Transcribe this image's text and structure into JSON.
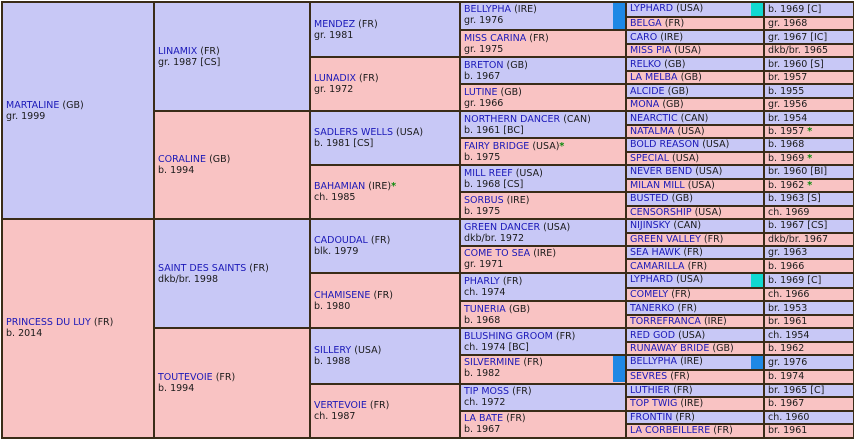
{
  "colors": {
    "male": "#c8c8f6",
    "female": "#f9c3c3",
    "border": "#3a2c18",
    "name": "#1a18b8",
    "star": "#0a8a0a",
    "flag_blue": "#1e88e5",
    "flag_cyan": "#10d9d0"
  },
  "g1": [
    {
      "name": "MARTALINE",
      "country": "(GB)",
      "info": "gr. 1999"
    },
    {
      "name": "PRINCESS DU LUY",
      "country": "(FR)",
      "info": "b. 2014"
    }
  ],
  "g2": [
    {
      "name": "LINAMIX",
      "country": "(FR)",
      "info": "gr. 1987 [CS]"
    },
    {
      "name": "CORALINE",
      "country": "(GB)",
      "info": "b. 1994"
    },
    {
      "name": "SAINT DES SAINTS",
      "country": "(FR)",
      "info": "dkb/br. 1998"
    },
    {
      "name": "TOUTEVOIE",
      "country": "(FR)",
      "info": "b. 1994"
    }
  ],
  "g3": [
    {
      "name": "MENDEZ",
      "country": "(FR)",
      "info": "gr. 1981"
    },
    {
      "name": "LUNADIX",
      "country": "(FR)",
      "info": "gr. 1972"
    },
    {
      "name": "SADLERS WELLS",
      "country": "(USA)",
      "info": "b. 1981 [CS]"
    },
    {
      "name": "BAHAMIAN",
      "country": "(IRE)",
      "info": "ch. 1985",
      "star": "*"
    },
    {
      "name": "CADOUDAL",
      "country": "(FR)",
      "info": "blk. 1979"
    },
    {
      "name": "CHAMISENE",
      "country": "(FR)",
      "info": "b. 1980"
    },
    {
      "name": "SILLERY",
      "country": "(USA)",
      "info": "b. 1988"
    },
    {
      "name": "VERTEVOIE",
      "country": "(FR)",
      "info": "ch. 1987"
    }
  ],
  "g4": [
    {
      "name": "BELLYPHA",
      "country": "(IRE)",
      "info": "gr. 1976"
    },
    {
      "name": "MISS CARINA",
      "country": "(FR)",
      "info": "gr. 1975"
    },
    {
      "name": "BRETON",
      "country": "(GB)",
      "info": "b. 1967"
    },
    {
      "name": "LUTINE",
      "country": "(GB)",
      "info": "gr. 1966"
    },
    {
      "name": "NORTHERN DANCER",
      "country": "(CAN)",
      "info": "b. 1961 [BC]"
    },
    {
      "name": "FAIRY BRIDGE",
      "country": "(USA)",
      "info": "b. 1975",
      "star": "*"
    },
    {
      "name": "MILL REEF",
      "country": "(USA)",
      "info": "b. 1968 [CS]"
    },
    {
      "name": "SORBUS",
      "country": "(IRE)",
      "info": "b. 1975"
    },
    {
      "name": "GREEN DANCER",
      "country": "(USA)",
      "info": "dkb/br. 1972"
    },
    {
      "name": "COME TO SEA",
      "country": "(IRE)",
      "info": "gr. 1971"
    },
    {
      "name": "PHARLY",
      "country": "(FR)",
      "info": "ch. 1974"
    },
    {
      "name": "TUNERIA",
      "country": "(GB)",
      "info": "b. 1968"
    },
    {
      "name": "BLUSHING GROOM",
      "country": "(FR)",
      "info": "ch. 1974 [BC]"
    },
    {
      "name": "SILVERMINE",
      "country": "(FR)",
      "info": "b. 1982"
    },
    {
      "name": "TIP MOSS",
      "country": "(FR)",
      "info": "ch. 1972"
    },
    {
      "name": "LA BATE",
      "country": "(FR)",
      "info": "b. 1967"
    }
  ],
  "g5": [
    {
      "name": "LYPHARD",
      "country": "(USA)",
      "info": "b. 1969 [C]"
    },
    {
      "name": "BELGA",
      "country": "(FR)",
      "info": "gr. 1968"
    },
    {
      "name": "CARO",
      "country": "(IRE)",
      "info": "gr. 1967 [IC]"
    },
    {
      "name": "MISS PIA",
      "country": "(USA)",
      "info": "dkb/br. 1965"
    },
    {
      "name": "RELKO",
      "country": "(GB)",
      "info": "br. 1960 [S]"
    },
    {
      "name": "LA MELBA",
      "country": "(GB)",
      "info": "br. 1957"
    },
    {
      "name": "ALCIDE",
      "country": "(GB)",
      "info": "b. 1955"
    },
    {
      "name": "MONA",
      "country": "(GB)",
      "info": "gr. 1956"
    },
    {
      "name": "NEARCTIC",
      "country": "(CAN)",
      "info": "br. 1954"
    },
    {
      "name": "NATALMA",
      "country": "(USA)",
      "info": "b. 1957",
      "star": "*"
    },
    {
      "name": "BOLD REASON",
      "country": "(USA)",
      "info": "b. 1968"
    },
    {
      "name": "SPECIAL",
      "country": "(USA)",
      "info": "b. 1969",
      "star": "*"
    },
    {
      "name": "NEVER BEND",
      "country": "(USA)",
      "info": "br. 1960 [BI]"
    },
    {
      "name": "MILAN MILL",
      "country": "(USA)",
      "info": "b. 1962",
      "star": "*"
    },
    {
      "name": "BUSTED",
      "country": "(GB)",
      "info": "b. 1963 [S]"
    },
    {
      "name": "CENSORSHIP",
      "country": "(USA)",
      "info": "ch. 1969"
    },
    {
      "name": "NIJINSKY",
      "country": "(CAN)",
      "info": "b. 1967 [CS]"
    },
    {
      "name": "GREEN VALLEY",
      "country": "(FR)",
      "info": "dkb/br. 1967"
    },
    {
      "name": "SEA HAWK",
      "country": "(FR)",
      "info": "gr. 1963"
    },
    {
      "name": "CAMARILLA",
      "country": "(FR)",
      "info": "b. 1966"
    },
    {
      "name": "LYPHARD",
      "country": "(USA)",
      "info": "b. 1969 [C]"
    },
    {
      "name": "COMELY",
      "country": "(FR)",
      "info": "ch. 1966"
    },
    {
      "name": "TANERKO",
      "country": "(FR)",
      "info": "br. 1953"
    },
    {
      "name": "TORREFRANCA",
      "country": "(IRE)",
      "info": "br. 1961"
    },
    {
      "name": "RED GOD",
      "country": "(USA)",
      "info": "ch. 1954"
    },
    {
      "name": "RUNAWAY BRIDE",
      "country": "(GB)",
      "info": "b. 1962"
    },
    {
      "name": "BELLYPHA",
      "country": "(IRE)",
      "info": "gr. 1976"
    },
    {
      "name": "SEVRES",
      "country": "(FR)",
      "info": "b. 1974"
    },
    {
      "name": "LUTHIER",
      "country": "(FR)",
      "info": "br. 1965 [C]"
    },
    {
      "name": "TOP TWIG",
      "country": "(IRE)",
      "info": "b. 1967"
    },
    {
      "name": "FRONTIN",
      "country": "(FR)",
      "info": "ch. 1960"
    },
    {
      "name": "LA CORBEILLERE",
      "country": "(FR)",
      "info": "br. 1961"
    }
  ]
}
